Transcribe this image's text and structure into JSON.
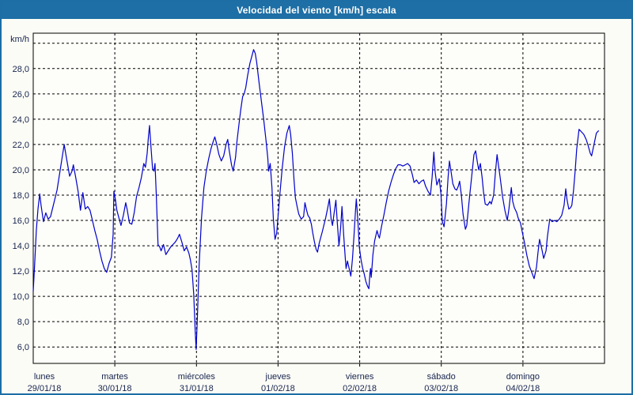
{
  "window": {
    "title": "Velocidad del viento [km/h] escala"
  },
  "colors": {
    "accent": "#1e6fa5",
    "frame_border": "#1c6ea4",
    "background": "#fcfcf6",
    "plot_background": "#fdfdf9",
    "grid": "#000000",
    "text": "#16244e",
    "series": "#0000cc"
  },
  "chart_data": {
    "type": "line",
    "title": "Velocidad del viento [km/h] escala",
    "unit_label": "km/h",
    "grid": true,
    "legend": "none",
    "y_axis": {
      "min": 4.7,
      "max": 30.8,
      "tick_start": 6,
      "tick_step": 2,
      "tick_end": 28,
      "top_line_value": 30,
      "tick_labels": [
        "6,0",
        "8,0",
        "10,0",
        "12,0",
        "14,0",
        "16,0",
        "18,0",
        "20,0",
        "22,0",
        "24,0",
        "26,0",
        "28,0"
      ]
    },
    "x_axis": {
      "hours_total": 168,
      "hours_per_day": 24,
      "days": [
        {
          "name": "lunes",
          "date": "29/01/18",
          "tick_hour": 0
        },
        {
          "name": "martes",
          "date": "30/01/18",
          "tick_hour": 24
        },
        {
          "name": "miércoles",
          "date": "31/01/18",
          "tick_hour": 48
        },
        {
          "name": "jueves",
          "date": "01/02/18",
          "tick_hour": 72
        },
        {
          "name": "viernes",
          "date": "02/02/18",
          "tick_hour": 96
        },
        {
          "name": "sábado",
          "date": "03/02/18",
          "tick_hour": 120
        },
        {
          "name": "domingo",
          "date": "04/02/18",
          "tick_hour": 144
        }
      ]
    },
    "series": [
      {
        "name": "Velocidad del viento [km/h]",
        "color": "#0000cc",
        "points": [
          [
            0,
            10.4
          ],
          [
            0.5,
            12.9
          ],
          [
            0.9,
            15.2
          ],
          [
            1.4,
            16.9
          ],
          [
            1.9,
            18.1
          ],
          [
            2.3,
            17.2
          ],
          [
            3,
            15.9
          ],
          [
            3.7,
            16.6
          ],
          [
            4.4,
            16.1
          ],
          [
            5.1,
            16.3
          ],
          [
            6,
            17.3
          ],
          [
            7,
            18.4
          ],
          [
            7.7,
            19.6
          ],
          [
            8.4,
            20.8
          ],
          [
            9.1,
            22
          ],
          [
            9.8,
            20.9
          ],
          [
            10.7,
            19.5
          ],
          [
            11.4,
            19.9
          ],
          [
            11.8,
            20.4
          ],
          [
            12.5,
            19.4
          ],
          [
            13.2,
            18.3
          ],
          [
            13.9,
            16.8
          ],
          [
            14.6,
            18.2
          ],
          [
            15.3,
            16.9
          ],
          [
            16,
            17.1
          ],
          [
            16.7,
            16.8
          ],
          [
            17.4,
            16
          ],
          [
            18.1,
            15.2
          ],
          [
            18.8,
            14.5
          ],
          [
            19.5,
            13.6
          ],
          [
            20.2,
            12.8
          ],
          [
            20.9,
            12.2
          ],
          [
            21.6,
            11.9
          ],
          [
            22.3,
            12.6
          ],
          [
            23,
            13.1
          ],
          [
            23.5,
            14.9
          ],
          [
            23.7,
            18.3
          ],
          [
            24.2,
            17.6
          ],
          [
            24.6,
            16.8
          ],
          [
            25.3,
            16.1
          ],
          [
            25.8,
            15.6
          ],
          [
            26.5,
            16.4
          ],
          [
            27.2,
            17.4
          ],
          [
            27.6,
            16.9
          ],
          [
            28.3,
            15.8
          ],
          [
            29,
            15.7
          ],
          [
            29.7,
            16.6
          ],
          [
            30.4,
            17.9
          ],
          [
            31.1,
            18.6
          ],
          [
            31.8,
            19.4
          ],
          [
            32.5,
            20.5
          ],
          [
            33,
            20.2
          ],
          [
            33.5,
            21.3
          ],
          [
            33.9,
            22.7
          ],
          [
            34.2,
            23.5
          ],
          [
            34.6,
            21.9
          ],
          [
            35.1,
            20.1
          ],
          [
            35.5,
            19.9
          ],
          [
            35.8,
            20.5
          ],
          [
            36.2,
            17.9
          ],
          [
            36.7,
            14.1
          ],
          [
            37.2,
            13.9
          ],
          [
            37.6,
            13.6
          ],
          [
            38.3,
            14.1
          ],
          [
            39,
            13.3
          ],
          [
            39.7,
            13.6
          ],
          [
            40.4,
            13.9
          ],
          [
            41.1,
            14.1
          ],
          [
            41.8,
            14.3
          ],
          [
            42.5,
            14.6
          ],
          [
            43,
            14.9
          ],
          [
            43.7,
            14.3
          ],
          [
            44.4,
            13.6
          ],
          [
            45.1,
            13.9
          ],
          [
            45.8,
            13.4
          ],
          [
            46.2,
            12.9
          ],
          [
            46.7,
            12.1
          ],
          [
            47.2,
            10.2
          ],
          [
            47.6,
            7.4
          ],
          [
            47.9,
            5.8
          ],
          [
            48.3,
            8.6
          ],
          [
            48.8,
            12.5
          ],
          [
            49.5,
            16.2
          ],
          [
            50.2,
            18.6
          ],
          [
            50.9,
            19.9
          ],
          [
            51.6,
            20.9
          ],
          [
            52.3,
            21.7
          ],
          [
            53,
            22.3
          ],
          [
            53.4,
            22.6
          ],
          [
            53.9,
            22.1
          ],
          [
            54.6,
            21.2
          ],
          [
            55.3,
            20.7
          ],
          [
            56,
            21.1
          ],
          [
            56.7,
            22
          ],
          [
            57.2,
            22.4
          ],
          [
            57.6,
            21.6
          ],
          [
            58.3,
            20.4
          ],
          [
            58.8,
            19.9
          ],
          [
            59.5,
            21
          ],
          [
            59.9,
            22.2
          ],
          [
            60.6,
            23.8
          ],
          [
            61.1,
            24.9
          ],
          [
            61.6,
            25.8
          ],
          [
            62,
            26
          ],
          [
            62.5,
            26.5
          ],
          [
            63,
            27.4
          ],
          [
            63.7,
            28.4
          ],
          [
            64.4,
            29.1
          ],
          [
            64.8,
            29.5
          ],
          [
            65.3,
            29.2
          ],
          [
            65.7,
            28.5
          ],
          [
            66.4,
            26.9
          ],
          [
            67.1,
            25.4
          ],
          [
            67.8,
            23.9
          ],
          [
            68.5,
            22.2
          ],
          [
            69,
            20.9
          ],
          [
            69.2,
            19.9
          ],
          [
            69.7,
            20.5
          ],
          [
            70.2,
            18.6
          ],
          [
            70.6,
            16.2
          ],
          [
            71.1,
            14.5
          ],
          [
            71.6,
            15
          ],
          [
            72,
            16.3
          ],
          [
            72.5,
            18
          ],
          [
            73.2,
            20.1
          ],
          [
            73.9,
            21.8
          ],
          [
            74.6,
            22.9
          ],
          [
            75.3,
            23.5
          ],
          [
            75.7,
            22.8
          ],
          [
            76.2,
            21.3
          ],
          [
            76.7,
            19.2
          ],
          [
            77.1,
            17.8
          ],
          [
            77.6,
            17.1
          ],
          [
            78.1,
            16.5
          ],
          [
            78.8,
            16.1
          ],
          [
            79.5,
            16.3
          ],
          [
            79.9,
            17.4
          ],
          [
            80.4,
            16.8
          ],
          [
            80.8,
            16.4
          ],
          [
            81.3,
            16.2
          ],
          [
            81.8,
            15.7
          ],
          [
            82.2,
            15
          ],
          [
            82.7,
            14.3
          ],
          [
            83.2,
            13.7
          ],
          [
            83.6,
            13.5
          ],
          [
            84.1,
            14.2
          ],
          [
            85,
            15.1
          ],
          [
            86,
            16.2
          ],
          [
            86.6,
            17
          ],
          [
            87.1,
            17.7
          ],
          [
            87.6,
            16.1
          ],
          [
            88,
            15.6
          ],
          [
            88.5,
            16.6
          ],
          [
            89,
            17.6
          ],
          [
            89.4,
            15.9
          ],
          [
            89.9,
            14
          ],
          [
            90.4,
            15.4
          ],
          [
            90.8,
            17.1
          ],
          [
            91.3,
            14.8
          ],
          [
            91.8,
            12.9
          ],
          [
            92,
            12.2
          ],
          [
            92.4,
            12.8
          ],
          [
            93.4,
            11.6
          ],
          [
            93.9,
            13
          ],
          [
            94.3,
            14.7
          ],
          [
            94.8,
            16.9
          ],
          [
            95,
            17.7
          ],
          [
            95.5,
            15.9
          ],
          [
            95.9,
            13.9
          ],
          [
            96.4,
            12.9
          ],
          [
            96.9,
            12.2
          ],
          [
            97.3,
            11.8
          ],
          [
            97.8,
            11.2
          ],
          [
            98.3,
            10.8
          ],
          [
            98.7,
            10.6
          ],
          [
            99,
            11.8
          ],
          [
            99.2,
            12.2
          ],
          [
            99.4,
            11.5
          ],
          [
            99.9,
            13.3
          ],
          [
            100.4,
            14.4
          ],
          [
            101.1,
            15.2
          ],
          [
            101.5,
            14.8
          ],
          [
            101.8,
            14.6
          ],
          [
            102.4,
            15.5
          ],
          [
            103.1,
            16.4
          ],
          [
            103.8,
            17.4
          ],
          [
            104.5,
            18.3
          ],
          [
            105.2,
            19
          ],
          [
            105.9,
            19.6
          ],
          [
            106.6,
            20.1
          ],
          [
            107.3,
            20.4
          ],
          [
            108,
            20.4
          ],
          [
            108.7,
            20.3
          ],
          [
            109.4,
            20.4
          ],
          [
            110.1,
            20.5
          ],
          [
            110.8,
            20.3
          ],
          [
            111.5,
            19.6
          ],
          [
            112,
            19
          ],
          [
            112.7,
            19.2
          ],
          [
            113.4,
            18.9
          ],
          [
            114.1,
            19.1
          ],
          [
            114.8,
            19.2
          ],
          [
            115.4,
            18.7
          ],
          [
            116.1,
            18.3
          ],
          [
            116.8,
            18
          ],
          [
            117.3,
            19.4
          ],
          [
            117.8,
            21.4
          ],
          [
            118.2,
            19.8
          ],
          [
            118.7,
            18.8
          ],
          [
            119.4,
            19.3
          ],
          [
            119.9,
            18.1
          ],
          [
            120.3,
            15.9
          ],
          [
            120.8,
            15.5
          ],
          [
            121.5,
            17.3
          ],
          [
            122,
            19.4
          ],
          [
            122.4,
            20.7
          ],
          [
            122.9,
            19.8
          ],
          [
            123.4,
            18.9
          ],
          [
            124,
            18.5
          ],
          [
            124.5,
            18.4
          ],
          [
            125,
            18.7
          ],
          [
            125.4,
            19.1
          ],
          [
            125.9,
            18
          ],
          [
            126.4,
            16.5
          ],
          [
            127.1,
            15.3
          ],
          [
            127.5,
            15.6
          ],
          [
            128.2,
            17.6
          ],
          [
            128.9,
            19.4
          ],
          [
            129.6,
            21.2
          ],
          [
            130.1,
            21.5
          ],
          [
            130.6,
            20.6
          ],
          [
            131,
            20
          ],
          [
            131.5,
            20.5
          ],
          [
            132,
            19.4
          ],
          [
            132.4,
            18.3
          ],
          [
            132.9,
            17.3
          ],
          [
            133.6,
            17.2
          ],
          [
            134.3,
            17.5
          ],
          [
            134.7,
            17.3
          ],
          [
            135.4,
            18
          ],
          [
            135.9,
            19.7
          ],
          [
            136.4,
            21.2
          ],
          [
            136.8,
            20.4
          ],
          [
            137.3,
            19.4
          ],
          [
            138,
            17.9
          ],
          [
            138.7,
            16.8
          ],
          [
            139.4,
            16
          ],
          [
            139.9,
            16.9
          ],
          [
            140.6,
            18.6
          ],
          [
            141,
            17.5
          ],
          [
            141.5,
            17
          ],
          [
            142.2,
            16.6
          ],
          [
            142.6,
            16.2
          ],
          [
            143.3,
            15.8
          ],
          [
            143.8,
            15.1
          ],
          [
            144.5,
            14.2
          ],
          [
            145.2,
            13.2
          ],
          [
            145.9,
            12.4
          ],
          [
            146.6,
            11.9
          ],
          [
            147.3,
            11.4
          ],
          [
            148,
            12.3
          ],
          [
            148.4,
            13.4
          ],
          [
            148.9,
            14.5
          ],
          [
            149.6,
            13.7
          ],
          [
            150.1,
            13
          ],
          [
            150.8,
            13.6
          ],
          [
            151.2,
            14.7
          ],
          [
            151.9,
            16.1
          ],
          [
            152.6,
            15.9
          ],
          [
            153.3,
            16
          ],
          [
            154,
            15.9
          ],
          [
            154.7,
            16.1
          ],
          [
            155.4,
            16.4
          ],
          [
            156.1,
            17.2
          ],
          [
            156.6,
            18.5
          ],
          [
            157,
            17.6
          ],
          [
            157.5,
            16.9
          ],
          [
            158,
            17
          ],
          [
            158.4,
            17.2
          ],
          [
            158.9,
            18.4
          ],
          [
            159.4,
            20
          ],
          [
            159.8,
            21.6
          ],
          [
            160.5,
            23.2
          ],
          [
            161.2,
            23
          ],
          [
            161.9,
            22.8
          ],
          [
            162.6,
            22.4
          ],
          [
            163.1,
            22
          ],
          [
            163.8,
            21.3
          ],
          [
            164.2,
            21.1
          ],
          [
            164.9,
            22
          ],
          [
            165.6,
            22.9
          ],
          [
            166.3,
            23.1
          ]
        ]
      }
    ]
  }
}
